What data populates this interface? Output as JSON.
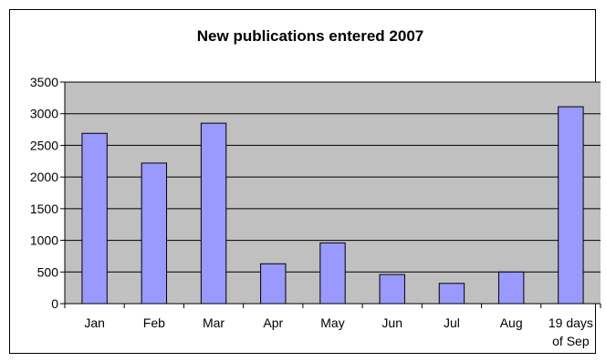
{
  "chart_data": {
    "type": "bar",
    "title": "New publications entered 2007",
    "categories": [
      "Jan",
      "Feb",
      "Mar",
      "Apr",
      "May",
      "Jun",
      "Jul",
      "Aug",
      "19 days of Sep"
    ],
    "category_lines": [
      [
        "Jan"
      ],
      [
        "Feb"
      ],
      [
        "Mar"
      ],
      [
        "Apr"
      ],
      [
        "May"
      ],
      [
        "Jun"
      ],
      [
        "Jul"
      ],
      [
        "Aug"
      ],
      [
        "19 days",
        "of Sep"
      ]
    ],
    "values": [
      2690,
      2220,
      2850,
      630,
      960,
      460,
      320,
      500,
      3110
    ],
    "ylim": [
      0,
      3500
    ],
    "yticks": [
      "0",
      "500",
      "1000",
      "1500",
      "2000",
      "2500",
      "3000",
      "3500"
    ],
    "grid": true,
    "legend": false,
    "colors": {
      "bar_fill": "#9999ff",
      "bar_stroke": "#000000",
      "plot_background": "#c0c0c0",
      "gridline": "#000000"
    }
  }
}
